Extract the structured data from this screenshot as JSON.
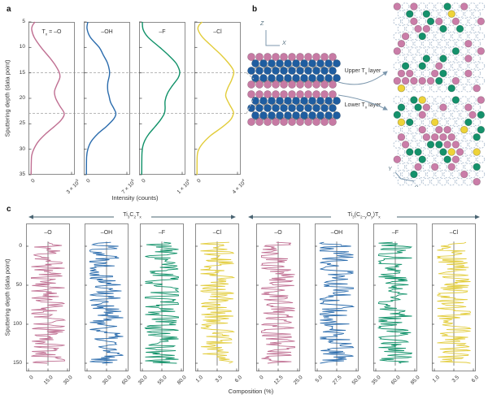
{
  "figure": {
    "panel_labels": {
      "a": "a",
      "b": "b",
      "c": "c"
    },
    "colors": {
      "rose": "#c06f92",
      "blue": "#2b6cad",
      "green": "#0f9168",
      "yellow": "#e2cc39",
      "atom_rose": "#c77aa4",
      "atom_blue": "#1f5da0",
      "bond": "#a3a3a3",
      "lattice_rose": "#ca7da8",
      "lattice_green": "#15916b",
      "lattice_yellow": "#eed338",
      "lattice_empty_stroke": "#b5c4d4",
      "box_border": "#8c8c8c",
      "dashed_guide": "#b8b8b8",
      "mean_line": "#999999",
      "annotation": "#7c97ad",
      "header_line": "#4a6472",
      "text": "#2b2b2b"
    },
    "panel_b": {
      "upper_label": "Upper T~x~ layer",
      "lower_label": "Lower T~x~ layer",
      "side_axes": {
        "vertical": "Z",
        "horizontal": "X"
      },
      "top_axes": {
        "vertical": "Y",
        "horizontal": "X"
      },
      "lattice": {
        "cols": 11,
        "rows": 12,
        "occupancy": {
          "rose": 0.22,
          "green": 0.14,
          "yellow": 0.04
        },
        "seeds": {
          "upper": 9,
          "lower": 21
        }
      }
    }
  },
  "chart_data": [
    {
      "panel": "a",
      "type": "line",
      "ylabel": "Sputtering depth (data point)",
      "xlabel": "Intensity (counts)",
      "ylim": [
        5,
        35
      ],
      "y_ticks": [
        5,
        10,
        15,
        20,
        25,
        30,
        35
      ],
      "dashed_guides": [
        15,
        23
      ],
      "x_axis_note": "profile values are fraction of panel max intensity",
      "series": [
        {
          "title": "T~x~ = –O",
          "color_key": "rose",
          "x_tick_labels": [
            "0",
            "3 × 10^5^"
          ],
          "profile": [
            [
              5,
              0.1
            ],
            [
              5.7,
              0.04
            ],
            [
              6.5,
              0.02
            ],
            [
              8,
              0.08
            ],
            [
              10,
              0.25
            ],
            [
              12,
              0.46
            ],
            [
              13.5,
              0.6
            ],
            [
              15,
              0.7
            ],
            [
              16,
              0.71
            ],
            [
              17.5,
              0.63
            ],
            [
              18.7,
              0.58
            ],
            [
              20,
              0.61
            ],
            [
              21.5,
              0.71
            ],
            [
              23,
              0.82
            ],
            [
              24.3,
              0.74
            ],
            [
              25.5,
              0.58
            ],
            [
              27,
              0.36
            ],
            [
              28.5,
              0.18
            ],
            [
              30,
              0.07
            ],
            [
              31.2,
              0.02
            ],
            [
              32.5,
              0.01
            ],
            [
              35,
              0.005
            ]
          ]
        },
        {
          "title": "–OH",
          "color_key": "blue",
          "x_tick_labels": [
            "0",
            "7 × 10^5^"
          ],
          "profile": [
            [
              5,
              0.04
            ],
            [
              6.3,
              0.02
            ],
            [
              8,
              0.1
            ],
            [
              10,
              0.32
            ],
            [
              11.5,
              0.42
            ],
            [
              13,
              0.52
            ],
            [
              14.5,
              0.57
            ],
            [
              15.5,
              0.57
            ],
            [
              17,
              0.53
            ],
            [
              18.5,
              0.53
            ],
            [
              19.5,
              0.56
            ],
            [
              20.8,
              0.6
            ],
            [
              22,
              0.68
            ],
            [
              23,
              0.73
            ],
            [
              24,
              0.68
            ],
            [
              25.5,
              0.5
            ],
            [
              27,
              0.28
            ],
            [
              28.5,
              0.12
            ],
            [
              30,
              0.04
            ],
            [
              31.5,
              0.01
            ],
            [
              35,
              0.005
            ]
          ]
        },
        {
          "title": "–F",
          "color_key": "green",
          "x_tick_labels": [
            "0",
            "1 × 10^6^"
          ],
          "profile": [
            [
              5,
              0.02
            ],
            [
              6.5,
              0.04
            ],
            [
              8,
              0.16
            ],
            [
              10,
              0.45
            ],
            [
              11.5,
              0.66
            ],
            [
              13,
              0.84
            ],
            [
              14.2,
              0.92
            ],
            [
              15,
              0.94
            ],
            [
              16,
              0.9
            ],
            [
              17.5,
              0.76
            ],
            [
              19,
              0.64
            ],
            [
              20.5,
              0.58
            ],
            [
              22,
              0.58
            ],
            [
              23,
              0.56
            ],
            [
              24.2,
              0.47
            ],
            [
              25.5,
              0.34
            ],
            [
              27,
              0.18
            ],
            [
              28.3,
              0.08
            ],
            [
              29.5,
              0.03
            ],
            [
              31,
              0.01
            ],
            [
              35,
              0.005
            ]
          ]
        },
        {
          "title": "–Cl",
          "color_key": "yellow",
          "x_tick_labels": [
            "0",
            "4 × 10^4^"
          ],
          "profile": [
            [
              5,
              0.13
            ],
            [
              5.7,
              0.05
            ],
            [
              6.5,
              0.03
            ],
            [
              8,
              0.14
            ],
            [
              10,
              0.4
            ],
            [
              11.5,
              0.6
            ],
            [
              13,
              0.77
            ],
            [
              14.2,
              0.88
            ],
            [
              15,
              0.91
            ],
            [
              16.5,
              0.85
            ],
            [
              18,
              0.76
            ],
            [
              19.5,
              0.71
            ],
            [
              21,
              0.79
            ],
            [
              22.3,
              0.88
            ],
            [
              23,
              0.9
            ],
            [
              24.3,
              0.82
            ],
            [
              25.8,
              0.6
            ],
            [
              27.3,
              0.34
            ],
            [
              28.8,
              0.15
            ],
            [
              30,
              0.05
            ],
            [
              31.3,
              0.01
            ],
            [
              35,
              0.005
            ]
          ]
        }
      ]
    },
    {
      "panel": "c",
      "type": "line",
      "groups": [
        "Ti~3~C~2~T~x~",
        "Ti~3~(C~2−y~O~y~)T~x~"
      ],
      "ylabel": "Sputtering depth (data point)",
      "xlabel": "Composition (%)",
      "ylim": [
        0,
        150
      ],
      "y_ticks": [
        0,
        50,
        100,
        150
      ],
      "n_points": 155,
      "series": [
        {
          "group": 0,
          "title": "–O",
          "color_key": "rose",
          "x_tick_labels": [
            "0",
            "15.0",
            "30.0"
          ],
          "center_value": "15.0",
          "seed": 11
        },
        {
          "group": 0,
          "title": "–OH",
          "color_key": "blue",
          "x_tick_labels": [
            "0",
            "30.0",
            "60.0"
          ],
          "center_value": "30.0",
          "seed": 22
        },
        {
          "group": 0,
          "title": "–F",
          "color_key": "green",
          "x_tick_labels": [
            "30.0",
            "55.0",
            "80.0"
          ],
          "center_value": "55.0",
          "seed": 33
        },
        {
          "group": 0,
          "title": "–Cl",
          "color_key": "yellow",
          "x_tick_labels": [
            "1.0",
            "3.5",
            "6.0"
          ],
          "center_value": "3.5",
          "seed": 44
        },
        {
          "group": 1,
          "title": "–O",
          "color_key": "rose",
          "x_tick_labels": [
            "0",
            "12.5",
            "25.0"
          ],
          "center_value": "12.5",
          "seed": 55
        },
        {
          "group": 1,
          "title": "–OH",
          "color_key": "blue",
          "x_tick_labels": [
            "5.0",
            "27.5",
            "50.0"
          ],
          "center_value": "27.5",
          "seed": 66
        },
        {
          "group": 1,
          "title": "–F",
          "color_key": "green",
          "x_tick_labels": [
            "35.0",
            "60.0",
            "85.0"
          ],
          "center_value": "60.0",
          "seed": 77
        },
        {
          "group": 1,
          "title": "–Cl",
          "color_key": "yellow",
          "x_tick_labels": [
            "1.0",
            "3.5",
            "6.0"
          ],
          "center_value": "3.5",
          "seed": 88
        }
      ]
    }
  ]
}
